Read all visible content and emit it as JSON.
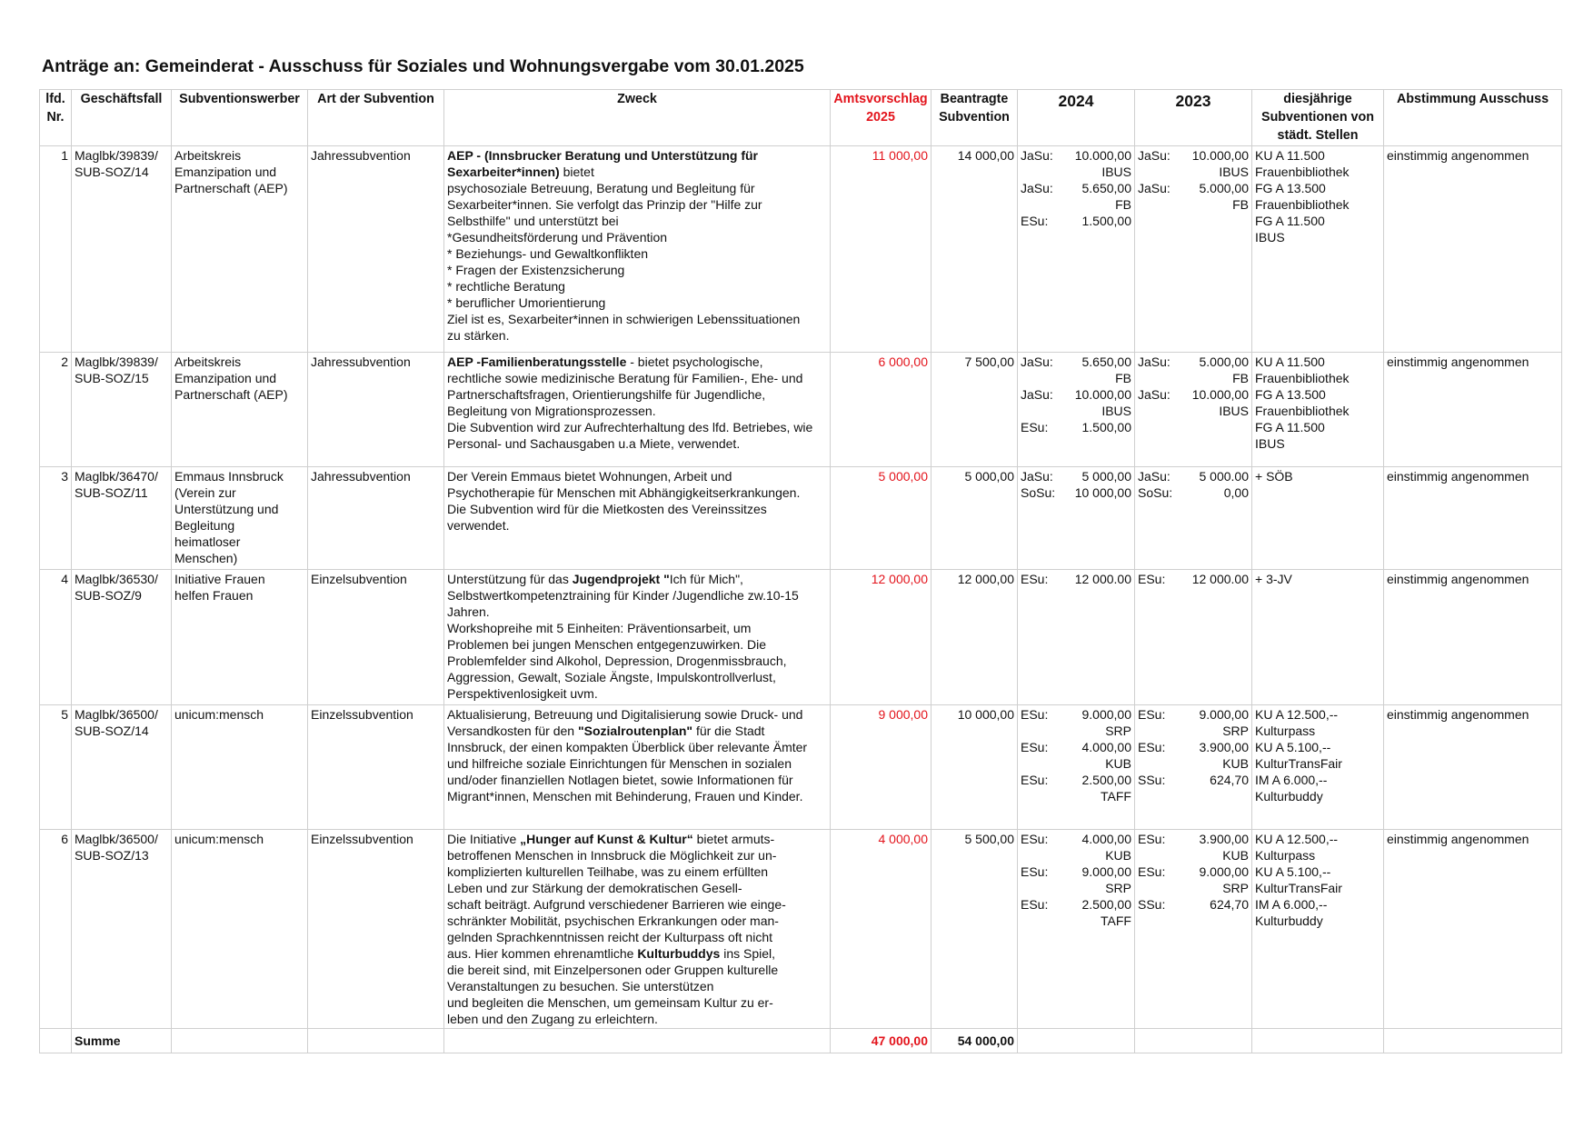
{
  "title": "Anträge an: Gemeinderat - Ausschuss für Soziales und Wohnungsvergabe vom 30.01.2025",
  "colors": {
    "accent_red": "#e3141c",
    "grid": "#cfcfcf"
  },
  "headers": {
    "nr": [
      "lfd.",
      "Nr."
    ],
    "gf": "Geschäftsfall",
    "sw": "Subventionswerber",
    "art": "Art der Subvention",
    "zweck": "Zweck",
    "amt": [
      "Amtsvorschlag",
      "2025"
    ],
    "bea": [
      "Beantragte",
      "Subvention"
    ],
    "y2024": "2024",
    "y2023": "2023",
    "dj": [
      "diesjährige",
      "Subventionen von",
      "städt. Stellen"
    ],
    "abst": "Abstimmung Ausschuss"
  },
  "rows": [
    {
      "nr": "1",
      "gf": [
        "Maglbk/39839/",
        "SUB-SOZ/14"
      ],
      "sw": [
        "Arbeitskreis",
        "Emanzipation und",
        "Partnerschaft (AEP)"
      ],
      "art": "Jahressubvention",
      "zweck": [
        [
          {
            "t": "AEP - (Innsbrucker Beratung und Unterstützung für",
            "b": true
          }
        ],
        [
          {
            "t": "Sexarbeiter*innen)",
            "b": true
          },
          {
            "t": " bietet"
          }
        ],
        "psychosoziale Betreuung, Beratung und Begleitung für",
        "Sexarbeiter*innen. Sie verfolgt das Prinzip der \"Hilfe zur",
        "Selbsthilfe\"  und unterstützt bei",
        "*Gesundheitsförderung und Prävention",
        "* Beziehungs- und Gewaltkonflikten",
        "* Fragen der Existenzsicherung",
        "* rechtliche Beratung",
        "* beruflicher Umorientierung",
        "Ziel ist es, Sexarbeiter*innen in schwierigen Lebenssituationen",
        "zu stärken."
      ],
      "amt": "11 000,00",
      "bea": "14 000,00",
      "y2024_labels": [
        "JaSu:",
        "",
        "JaSu:",
        "",
        "ESu:"
      ],
      "y2024_values": [
        "10.000,00",
        "IBUS",
        "5.650,00",
        "FB",
        "1.500,00"
      ],
      "y2023_labels": [
        "JaSu:",
        "",
        "JaSu:"
      ],
      "y2023_values": [
        "10.000,00",
        "IBUS",
        "5.000,00",
        "FB"
      ],
      "dj": [
        "KU A 11.500",
        "Frauenbibliothek",
        "FG A 13.500",
        "Frauenbibliothek",
        "FG A 11.500",
        "IBUS"
      ],
      "abst": "einstimmig angenommen"
    },
    {
      "nr": "2",
      "gf": [
        "Maglbk/39839/",
        "SUB-SOZ/15"
      ],
      "sw": [
        "Arbeitskreis",
        "Emanzipation und",
        "Partnerschaft (AEP)"
      ],
      "art": "Jahressubvention",
      "zweck": [
        [
          {
            "t": "AEP -Familienberatungsstelle",
            "b": true
          },
          {
            "t": " - bietet psychologische,"
          }
        ],
        "rechtliche sowie medizinische Beratung für Familien-, Ehe- und",
        "Partnerschaftsfragen, Orientierungshilfe für Jugendliche,",
        "Begleitung von Migrationsprozessen.",
        "Die Subvention wird zur Aufrechterhaltung des lfd. Betriebes, wie",
        "Personal- und Sachausgaben u.a  Miete, verwendet."
      ],
      "amt": "6 000,00",
      "bea": "7 500,00",
      "y2024_labels": [
        "JaSu:",
        "",
        "JaSu:",
        "",
        "ESu:"
      ],
      "y2024_values": [
        "5.650,00",
        "FB",
        "10.000,00",
        "IBUS",
        "1.500,00"
      ],
      "y2023_labels": [
        "JaSu:",
        "",
        "JaSu:"
      ],
      "y2023_values": [
        "5.000,00",
        "FB",
        "10.000,00",
        "IBUS"
      ],
      "dj": [
        "KU A 11.500",
        "Frauenbibliothek",
        "FG A 13.500",
        "Frauenbibliothek",
        "FG A 11.500",
        " IBUS"
      ],
      "abst": "einstimmig angenommen"
    },
    {
      "nr": "3",
      "gf": [
        "Maglbk/36470/",
        "SUB-SOZ/11"
      ],
      "sw": [
        "Emmaus Innsbruck",
        "(Verein zur",
        "Unterstützung und",
        "Begleitung",
        "heimatloser",
        "Menschen)"
      ],
      "art": "Jahressubvention",
      "zweck": [
        "Der Verein Emmaus bietet Wohnungen, Arbeit und",
        "Psychotherapie für Menschen mit Abhängigkeitserkrankungen.",
        "Die Subvention wird für die Mietkosten des Vereinssitzes",
        "verwendet."
      ],
      "amt": "5 000,00",
      "bea": "5 000,00",
      "y2024_labels": [
        "JaSu:",
        "SoSu:"
      ],
      "y2024_values": [
        "5 000,00",
        "10 000,00"
      ],
      "y2023_labels": [
        "JaSu:",
        "SoSu:"
      ],
      "y2023_values": [
        "5 000.00",
        "0,00"
      ],
      "dj": [
        "+ SÖB"
      ],
      "abst": "einstimmig angenommen"
    },
    {
      "nr": "4",
      "gf": [
        "Maglbk/36530/",
        "SUB-SOZ/9"
      ],
      "sw": [
        "Initiative Frauen",
        "helfen Frauen"
      ],
      "art": "Einzelsubvention",
      "zweck": [
        [
          {
            "t": "Unterstützung für das "
          },
          {
            "t": "Jugendprojekt \"",
            "b": true
          },
          {
            "t": "Ich für Mich\","
          }
        ],
        "Selbstwertkompetenztraining für Kinder /Jugendliche zw.10-15",
        "Jahren.",
        "Workshopreihe mit 5 Einheiten: Präventionsarbeit, um",
        "Problemen bei jungen Menschen entgegenzuwirken. Die",
        "Problemfelder sind Alkohol, Depression, Drogenmissbrauch,",
        "Aggression, Gewalt, Soziale Ängste, Impulskontrollverlust,",
        "Perspektivenlosigkeit uvm."
      ],
      "amt": "12 000,00",
      "bea": "12 000,00",
      "y2024_labels": [
        "ESu:"
      ],
      "y2024_values": [
        "12 000.00"
      ],
      "y2023_labels": [
        "ESu:"
      ],
      "y2023_values": [
        "12 000.00"
      ],
      "dj": [
        "+ 3-JV"
      ],
      "abst": "einstimmig angenommen"
    },
    {
      "nr": "5",
      "gf": [
        "Maglbk/36500/",
        "SUB-SOZ/14"
      ],
      "sw": [
        "unicum:mensch"
      ],
      "art": "Einzelssubvention",
      "zweck": [
        "Aktualisierung, Betreuung und Digitalisierung sowie Druck- und",
        [
          {
            "t": "Versandkosten für den "
          },
          {
            "t": "\"Sozialroutenplan\"",
            "b": true
          },
          {
            "t": " für die Stadt"
          }
        ],
        "Innsbruck, der einen kompakten Überblick über relevante Ämter",
        "und hilfreiche soziale Einrichtungen für Menschen in sozialen",
        "und/oder finanziellen Notlagen bietet, sowie Informationen für",
        "Migrant*innen, Menschen mit Behinderung, Frauen und Kinder."
      ],
      "amt": "9 000,00",
      "bea": "10 000,00",
      "y2024_labels": [
        "ESu:",
        "",
        "ESu:",
        "",
        "ESu:"
      ],
      "y2024_values": [
        "9.000,00",
        "SRP",
        "4.000,00",
        "KUB",
        "2.500,00",
        "TAFF"
      ],
      "y2023_labels": [
        "ESu:",
        "",
        "ESu:",
        "",
        "SSu:"
      ],
      "y2023_values": [
        "9.000,00",
        "SRP",
        "3.900,00",
        "KUB",
        "624,70"
      ],
      "dj": [
        "KU A 12.500,--",
        "Kulturpass",
        "KU A 5.100,--",
        "KulturTransFair",
        "IM A 6.000,--",
        "Kulturbuddy"
      ],
      "abst": "einstimmig angenommen"
    },
    {
      "nr": "6",
      "gf": [
        "Maglbk/36500/",
        "SUB-SOZ/13"
      ],
      "sw": [
        "unicum:mensch"
      ],
      "art": "Einzelssubvention",
      "zweck": [
        [
          {
            "t": "Die Initiative "
          },
          {
            "t": "„Hunger auf Kunst & Kultur“",
            "b": true
          },
          {
            "t": " bietet armuts-"
          }
        ],
        "betroffenen Menschen in Innsbruck die Möglichkeit zur un-",
        "komplizierten kulturellen Teilhabe, was zu einem erfüllten",
        "Leben und zur Stärkung der demokratischen Gesell-",
        "schaft beiträgt. Aufgrund verschiedener Barrieren wie einge-",
        "schränkter Mobilität, psychischen Erkrankungen oder man-",
        "gelnden Sprachkenntnissen reicht der Kulturpass oft nicht",
        [
          {
            "t": "aus. Hier kommen ehrenamtliche "
          },
          {
            "t": "Kulturbuddys",
            "b": true
          },
          {
            "t": " ins Spiel,"
          }
        ],
        "die bereit sind, mit Einzelpersonen oder Gruppen kulturelle",
        "Veranstaltungen zu besuchen. Sie unterstützen",
        "und begleiten die Menschen, um gemeinsam Kultur zu er-",
        "leben und den Zugang zu erleichtern."
      ],
      "amt": "4 000,00",
      "bea": "5 500,00",
      "y2024_labels": [
        "ESu:",
        "",
        "ESu:",
        "",
        "ESu:"
      ],
      "y2024_values": [
        "4.000,00",
        "KUB",
        "9.000,00",
        "SRP",
        "2.500,00",
        "TAFF"
      ],
      "y2023_labels": [
        "ESu:",
        "",
        "ESu:",
        "",
        "SSu:"
      ],
      "y2023_values": [
        "3.900,00",
        "KUB",
        "9.000,00",
        "SRP",
        "624,70"
      ],
      "dj": [
        "KU A 12.500,--",
        "Kulturpass",
        "KU A 5.100,--",
        "KulturTransFair",
        "IM A 6.000,--",
        "Kulturbuddy"
      ],
      "abst": "einstimmig angenommen"
    }
  ],
  "summe": {
    "label": "Summe",
    "amt": "47 000,00",
    "bea": "54 000,00"
  }
}
